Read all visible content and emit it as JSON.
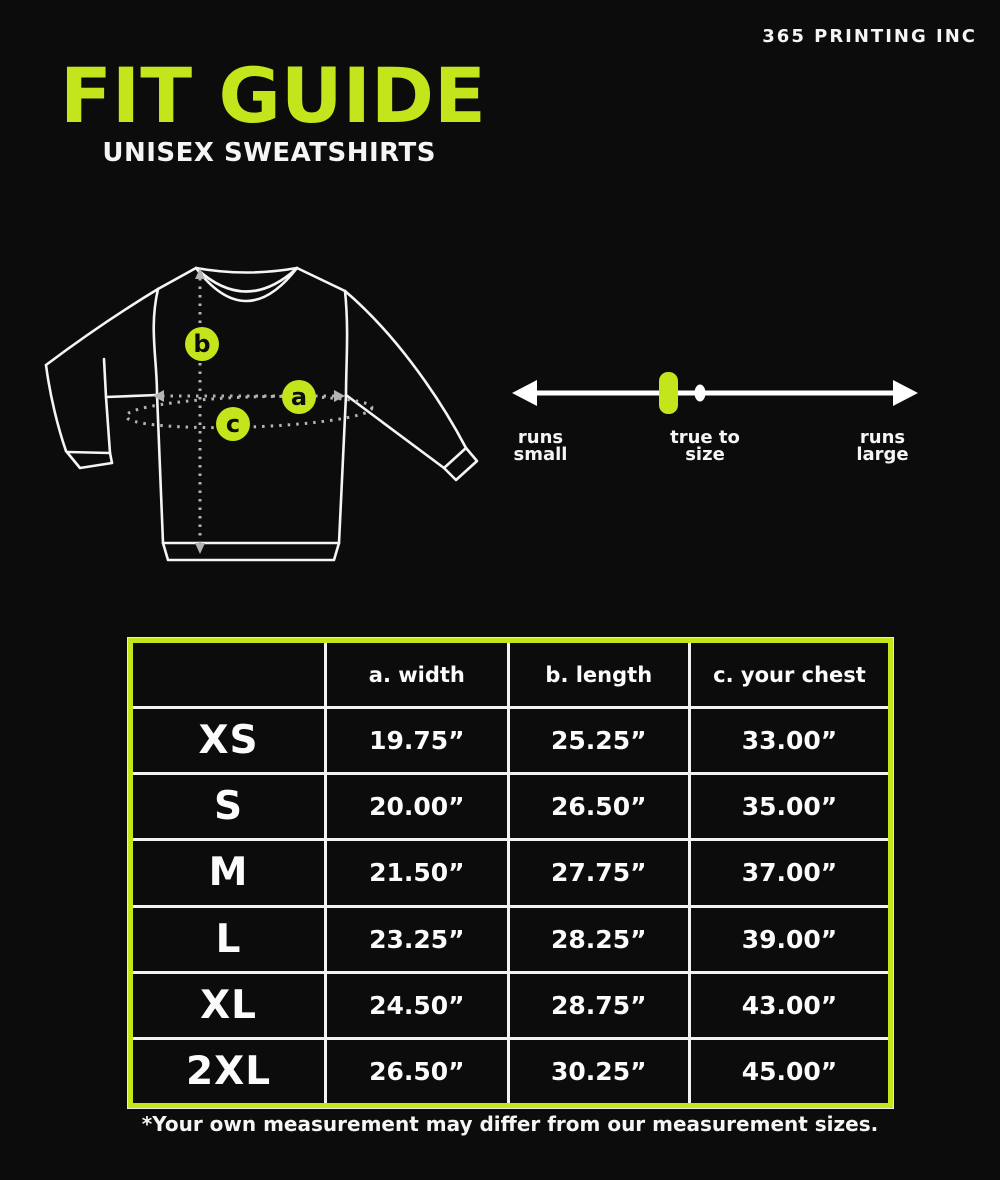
{
  "colors": {
    "accent_green": "#c3e51c",
    "text_white": "#ffffff",
    "background": "#0c0c0c"
  },
  "brand": {
    "name": "365 PRINTING INC"
  },
  "header": {
    "title": "FIT GUIDE",
    "subtitle": "UNISEX SWEATSHIRTS"
  },
  "diagram": {
    "garment": "sweatshirt",
    "labels": {
      "a": "a",
      "b": "b",
      "c": "c"
    }
  },
  "fit_scale": {
    "left_label": "runs\nsmall",
    "center_label": "true to\nsize",
    "right_label": "runs\nlarge",
    "marker_position": "true to size"
  },
  "table": {
    "columns": [
      "",
      "a. width",
      "b. length",
      "c. your chest"
    ],
    "rows": [
      {
        "size": "XS",
        "values": [
          "19.75”",
          "25.25”",
          "33.00”"
        ]
      },
      {
        "size": "S",
        "values": [
          "20.00”",
          "26.50”",
          "35.00”"
        ]
      },
      {
        "size": "M",
        "values": [
          "21.50”",
          "27.75”",
          "37.00”"
        ]
      },
      {
        "size": "L",
        "values": [
          "23.25”",
          "28.25”",
          "39.00”"
        ]
      },
      {
        "size": "XL",
        "values": [
          "24.50”",
          "28.75”",
          "43.00”"
        ]
      },
      {
        "size": "2XL",
        "values": [
          "26.50”",
          "30.25”",
          "45.00”"
        ]
      }
    ]
  },
  "footer": {
    "note": "*Your own measurement may differ from our measurement sizes."
  }
}
